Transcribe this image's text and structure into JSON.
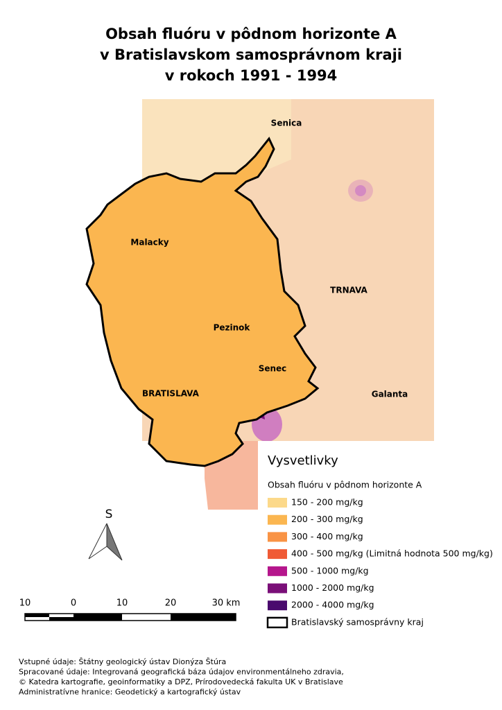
{
  "title": [
    "Obsah fluóru v pôdnom horizonte A",
    "v Bratislavskom samosprávnom kraji",
    "v rokoch 1991 - 1994"
  ],
  "places": [
    "Senica",
    "Malacky",
    "TRNAVA",
    "Pezinok",
    "Senec",
    "BRATISLAVA",
    "Galanta"
  ],
  "north_label": "S",
  "scale_labels": [
    "10",
    "0",
    "10",
    "20",
    "30 km"
  ],
  "legend": {
    "title": "Vysvetlivky",
    "subtitle": "Obsah fluóru v pôdnom horizonte A",
    "items": [
      {
        "label": "150 - 200 mg/kg",
        "color": "#fcd98a"
      },
      {
        "label": "200 - 300 mg/kg",
        "color": "#fbb650"
      },
      {
        "label": "300 - 400 mg/kg",
        "color": "#f99345"
      },
      {
        "label": "400 - 500 mg/kg (Limitná hodnota 500 mg/kg)",
        "color": "#f05a35"
      },
      {
        "label": "500 - 1000 mg/kg",
        "color": "#b5168c"
      },
      {
        "label": "1000 - 2000 mg/kg",
        "color": "#7a0f78"
      },
      {
        "label": "2000 - 4000 mg/kg",
        "color": "#4a0a6e"
      }
    ],
    "outline_item": "Bratislavský samosprávny kraj"
  },
  "credits": [
    "Vstupné údaje: Štátny geologický ústav Dionýza Štúra",
    "Spracované údaje: Integrovaná geografická báza údajov environmentálneho zdravia,",
    "© Katedra kartografie, geoinformatiky a DPZ, Prírodovedecká fakulta UK v Bratislave",
    "Administratívne hranice: Geodetický a kartografický ústav"
  ]
}
